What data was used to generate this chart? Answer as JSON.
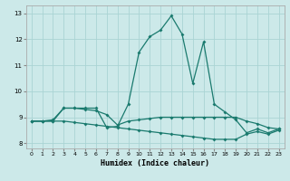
{
  "title": "",
  "xlabel": "Humidex (Indice chaleur)",
  "xlim": [
    -0.5,
    23.5
  ],
  "ylim": [
    7.8,
    13.3
  ],
  "yticks": [
    8,
    9,
    10,
    11,
    12,
    13
  ],
  "xticks": [
    0,
    1,
    2,
    3,
    4,
    5,
    6,
    7,
    8,
    9,
    10,
    11,
    12,
    13,
    14,
    15,
    16,
    17,
    18,
    19,
    20,
    21,
    22,
    23
  ],
  "bg_color": "#cce9e9",
  "grid_color": "#aad4d4",
  "line_color": "#1a7a6e",
  "line1_y": [
    8.85,
    8.85,
    8.85,
    9.35,
    9.35,
    9.35,
    9.35,
    8.6,
    8.65,
    9.5,
    11.5,
    12.1,
    12.35,
    12.9,
    12.2,
    10.3,
    11.9,
    9.5,
    9.2,
    8.9,
    8.4,
    8.55,
    8.4,
    8.55
  ],
  "line2_y": [
    8.85,
    8.85,
    8.9,
    9.35,
    9.35,
    9.3,
    9.25,
    9.1,
    8.7,
    8.85,
    8.9,
    8.95,
    9.0,
    9.0,
    9.0,
    9.0,
    9.0,
    9.0,
    9.0,
    9.0,
    8.85,
    8.75,
    8.6,
    8.55
  ],
  "line3_y": [
    8.85,
    8.85,
    8.85,
    8.85,
    8.8,
    8.75,
    8.7,
    8.65,
    8.6,
    8.55,
    8.5,
    8.45,
    8.4,
    8.35,
    8.3,
    8.25,
    8.2,
    8.15,
    8.15,
    8.15,
    8.35,
    8.45,
    8.35,
    8.5
  ]
}
